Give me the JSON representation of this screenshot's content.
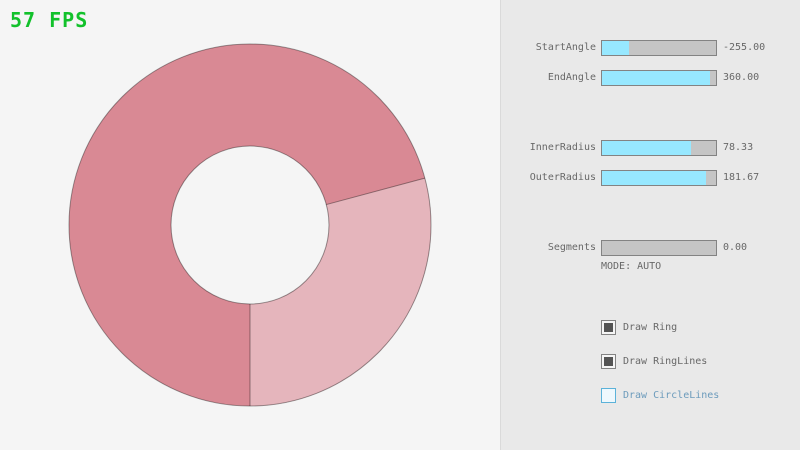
{
  "fps": {
    "text": "57 FPS"
  },
  "theme": {
    "canvas-bg": "#f5f5f5",
    "panel-bg": "#e9e9e9",
    "divider": "#dadada",
    "accent": "#97e8ff",
    "track": "#c5c5c5",
    "border": "#838383",
    "text": "#686868",
    "focus-border": "#5bb2d9",
    "focus-text": "#6c9bbc",
    "check": "#545454",
    "fps-green": "#12c12b",
    "ring-overlap": "#d98994",
    "ring-single": "#e5b5bc",
    "ring-line": "rgba(0,0,0,0.38)"
  },
  "panel": {
    "sliders": [
      {
        "label": "StartAngle",
        "value": "-255.00",
        "fill_pct": 24
      },
      {
        "label": "EndAngle",
        "value": "360.00",
        "fill_pct": 95
      },
      {
        "label": "InnerRadius",
        "value": "78.33",
        "fill_pct": 78
      },
      {
        "label": "OuterRadius",
        "value": "181.67",
        "fill_pct": 91
      },
      {
        "label": "Segments",
        "value": "0.00",
        "fill_pct": 0
      }
    ],
    "mode_text": "MODE: AUTO",
    "checkboxes": [
      {
        "label": "Draw Ring",
        "checked": true,
        "state": "normal"
      },
      {
        "label": "Draw RingLines",
        "checked": true,
        "state": "normal"
      },
      {
        "label": "Draw CircleLines",
        "checked": false,
        "state": "focused"
      }
    ]
  }
}
